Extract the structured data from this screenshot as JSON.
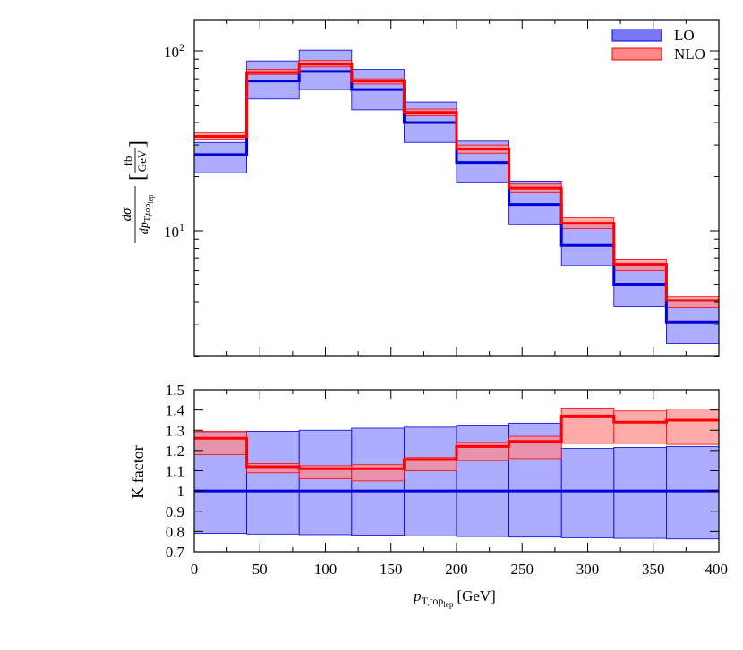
{
  "chart_data": [
    {
      "type": "line",
      "panel": "top",
      "scale": "log",
      "ylim": [
        2.2,
        160
      ],
      "xlim": [
        0,
        400
      ],
      "ylabel_frac_num": "dσ",
      "ylabel_frac_den": "dp",
      "ylabel_frac_den_sub": "T,top",
      "ylabel_frac_den_subsub": "lep",
      "ylabel_unit_num": "fb",
      "ylabel_unit_den": "GeV",
      "ytick_labels": [
        {
          "value": 10,
          "base": "10",
          "exp": "1"
        },
        {
          "value": 100,
          "base": "10",
          "exp": "2"
        }
      ],
      "bin_edges": [
        0,
        40,
        80,
        120,
        160,
        200,
        240,
        280,
        320,
        360,
        400
      ],
      "legend": {
        "placement": "top-right",
        "entries": [
          "LO",
          "NLO"
        ]
      },
      "series": [
        {
          "name": "LO",
          "color": "#0000dd",
          "band_color": "#7777ff",
          "values": [
            26.5,
            68.0,
            77.0,
            61.0,
            40.0,
            24.0,
            14.0,
            8.3,
            5.0,
            3.1
          ],
          "band_low": [
            21.0,
            54.0,
            61.0,
            47.0,
            31.0,
            18.5,
            10.8,
            6.4,
            3.8,
            2.35
          ],
          "band_high": [
            31.0,
            88.0,
            101.0,
            79.0,
            52.0,
            31.5,
            18.7,
            11.0,
            6.6,
            4.05
          ]
        },
        {
          "name": "NLO",
          "color": "#ff0000",
          "band_color": "#ff8888",
          "values": [
            33.5,
            76.0,
            84.5,
            68.0,
            45.5,
            28.5,
            17.3,
            11.0,
            6.5,
            4.1
          ],
          "band_low": [
            32.0,
            74.0,
            81.5,
            65.5,
            43.5,
            27.0,
            16.3,
            10.3,
            6.0,
            3.75
          ],
          "band_high": [
            35.0,
            79.0,
            88.5,
            70.0,
            47.5,
            30.0,
            18.2,
            11.8,
            6.9,
            4.3
          ]
        }
      ]
    },
    {
      "type": "line",
      "panel": "bottom",
      "ylim": [
        0.7,
        1.5
      ],
      "xlim": [
        0,
        400
      ],
      "ylabel": "K factor",
      "xlabel_main": "p",
      "xlabel_sub": "T,top",
      "xlabel_subsub": "lep",
      "xlabel_unit": "[GeV]",
      "yticks": [
        "1.5",
        "1.4",
        "1.3",
        "1.2",
        "1.1",
        "1",
        "0.9",
        "0.8",
        "0.7"
      ],
      "ytick_values": [
        1.5,
        1.4,
        1.3,
        1.2,
        1.1,
        1.0,
        0.9,
        0.8,
        0.7
      ],
      "xticks": [
        "0",
        "50",
        "100",
        "150",
        "200",
        "250",
        "300",
        "350",
        "400"
      ],
      "xtick_values": [
        0,
        50,
        100,
        150,
        200,
        250,
        300,
        350,
        400
      ],
      "bin_edges": [
        0,
        40,
        80,
        120,
        160,
        200,
        240,
        280,
        320,
        360,
        400
      ],
      "series": [
        {
          "name": "LO",
          "color": "#0000dd",
          "band_color": "#7777ff",
          "values": [
            1.0,
            1.0,
            1.0,
            1.0,
            1.0,
            1.0,
            1.0,
            1.0,
            1.0,
            1.0
          ],
          "band_low": [
            0.79,
            0.787,
            0.784,
            0.781,
            0.778,
            0.775,
            0.772,
            0.769,
            0.766,
            0.763
          ],
          "band_high": [
            1.29,
            1.295,
            1.3,
            1.31,
            1.315,
            1.325,
            1.335,
            1.21,
            1.215,
            1.22
          ]
        },
        {
          "name": "NLO",
          "color": "#ff0000",
          "band_color": "#ff8888",
          "values": [
            1.26,
            1.12,
            1.11,
            1.11,
            1.155,
            1.22,
            1.245,
            1.37,
            1.34,
            1.35
          ],
          "band_low": [
            1.18,
            1.09,
            1.06,
            1.05,
            1.1,
            1.15,
            1.16,
            1.235,
            1.235,
            1.23
          ],
          "band_high": [
            1.295,
            1.135,
            1.125,
            1.13,
            1.165,
            1.24,
            1.27,
            1.41,
            1.395,
            1.405
          ]
        }
      ]
    }
  ]
}
